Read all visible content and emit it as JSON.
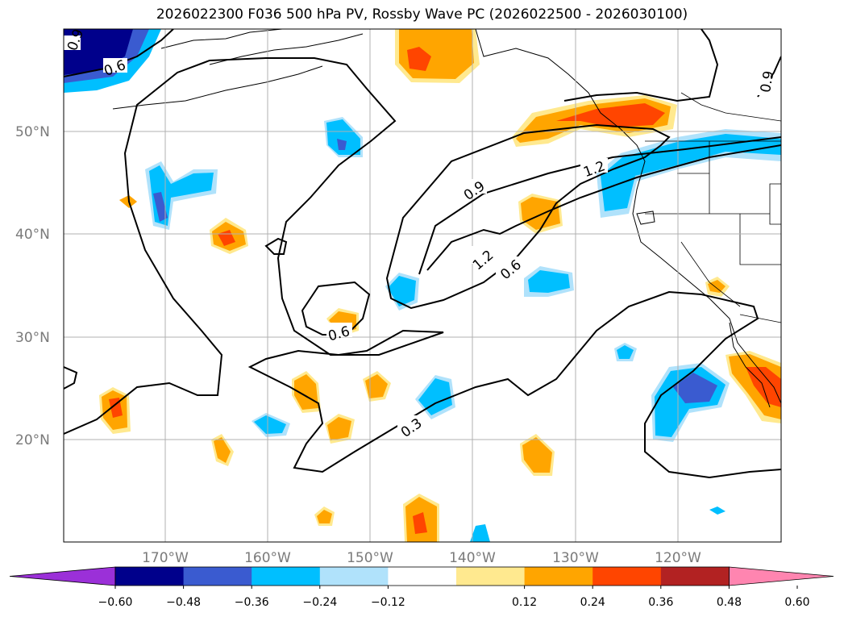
{
  "title": "2026022300 F036 500 hPa PV, Rossby Wave PC (2026022500 - 2026030100)",
  "latitude_labels": [
    "50°N",
    "40°N",
    "30°N",
    "20°N"
  ],
  "longitude_labels": [
    "170°W",
    "160°W",
    "150°W",
    "140°W",
    "130°W",
    "120°W"
  ],
  "colorbar": {
    "colors": [
      "#9b30d8",
      "#00008b",
      "#3a5bd0",
      "#00bfff",
      "#b0e2fb",
      "#ffffff",
      "#ffe98f",
      "#ffa500",
      "#ff4500",
      "#b22222",
      "#ff85b0"
    ],
    "labels": [
      "−0.60",
      "−0.48",
      "−0.36",
      "−0.24",
      "−0.12",
      "0.12",
      "0.24",
      "0.36",
      "0.48",
      "0.60"
    ]
  },
  "contour_labels": [
    "0.9",
    "0.6",
    "0.9",
    "1.2",
    "0.9",
    "1.2",
    "0.6",
    "0.6",
    "0.3"
  ],
  "colors": {
    "grid": "#b0b0b0",
    "contour": "#000000",
    "coast": "#000000"
  }
}
